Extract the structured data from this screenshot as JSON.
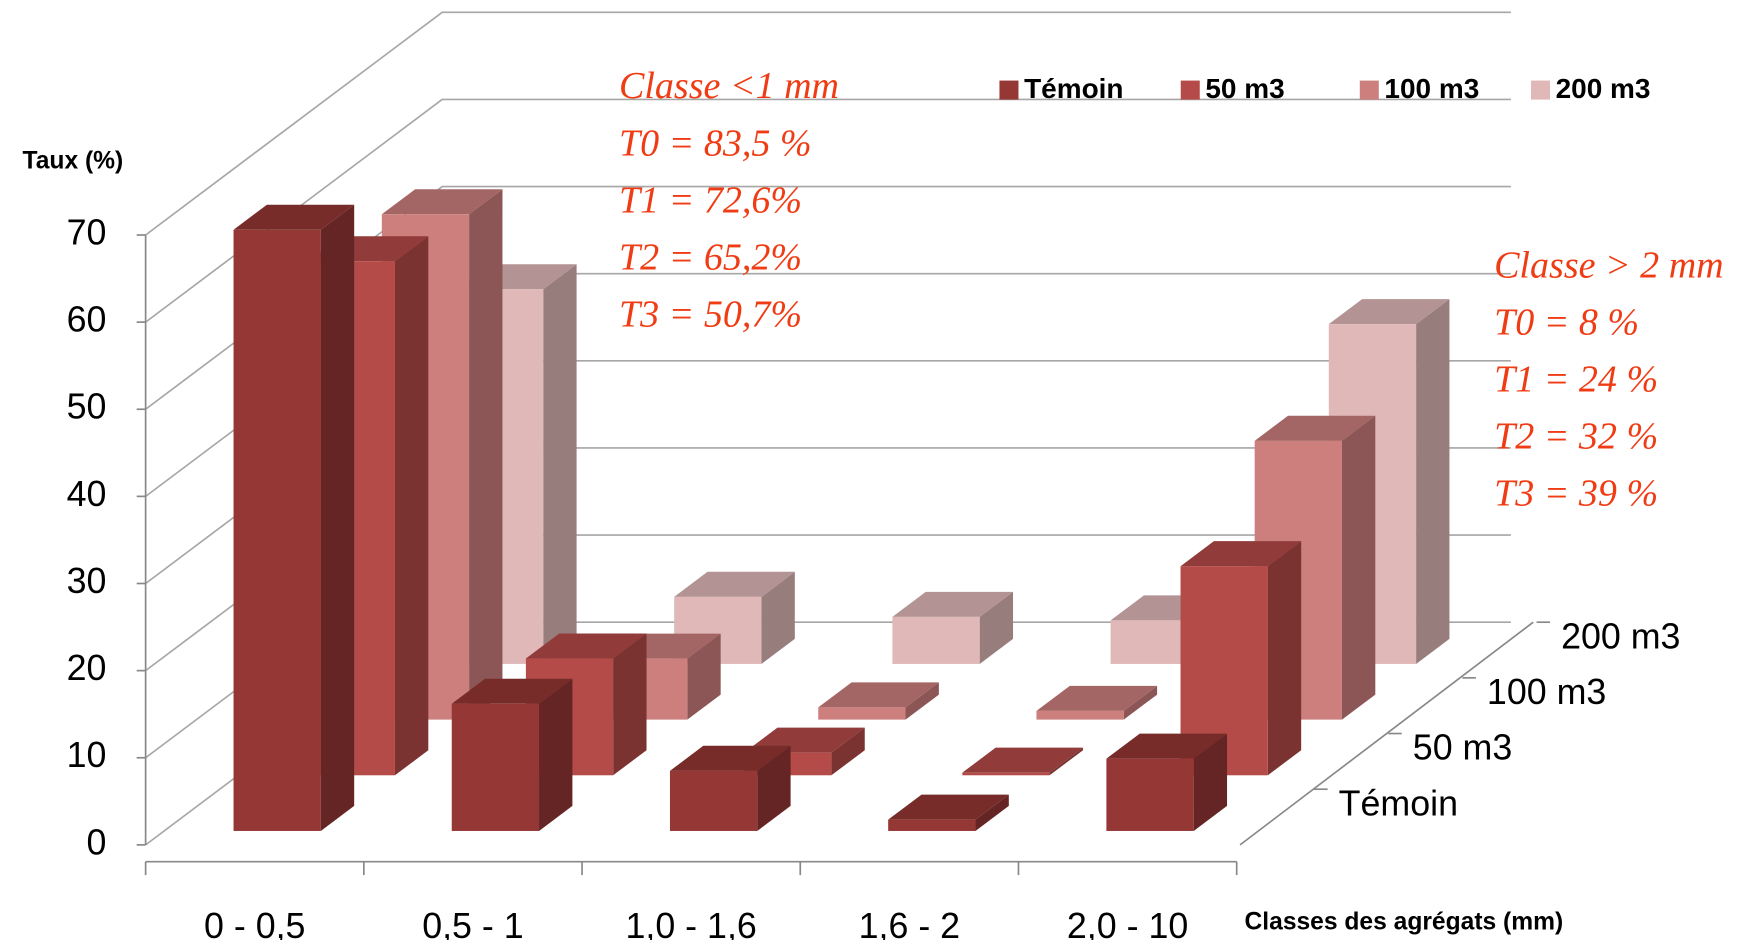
{
  "chart_data": {
    "type": "bar3d",
    "y_label": "Taux (%)",
    "x_label": "Classes des agrégats (mm)",
    "categories": [
      "0 - 0,5",
      "0,5 - 1",
      "1,0 - 1,6",
      "1,6 - 2",
      "2,0 - 10"
    ],
    "series": [
      {
        "name": "Témoin",
        "color": "#953735",
        "values": [
          69,
          14.6,
          6.9,
          1.3,
          8.3
        ]
      },
      {
        "name": "50 m3",
        "color": "#b54b48",
        "values": [
          59,
          13.4,
          2.6,
          0.3,
          24
        ]
      },
      {
        "name": "100 m3",
        "color": "#cd7f7d",
        "values": [
          58,
          7,
          1.4,
          1,
          32
        ]
      },
      {
        "name": "200 m3",
        "color": "#e0b8b8",
        "values": [
          43,
          7.7,
          5.4,
          5,
          39
        ]
      }
    ],
    "ylim": [
      0,
      70
    ],
    "yticks": [
      0,
      10,
      20,
      30,
      40,
      50,
      60,
      70
    ],
    "grid": true,
    "legend": "top-right",
    "annotations": [
      [
        "Classe <1 mm",
        "T0 = 83,5 %",
        "T1 = 72,6%",
        "T2 = 65,2%",
        "T3 = 50,7%"
      ],
      [
        "Classe  > 2 mm",
        "T0 = 8 %",
        "T1 = 24 %",
        "T2 = 32 %",
        "T3 = 39 %"
      ]
    ]
  }
}
